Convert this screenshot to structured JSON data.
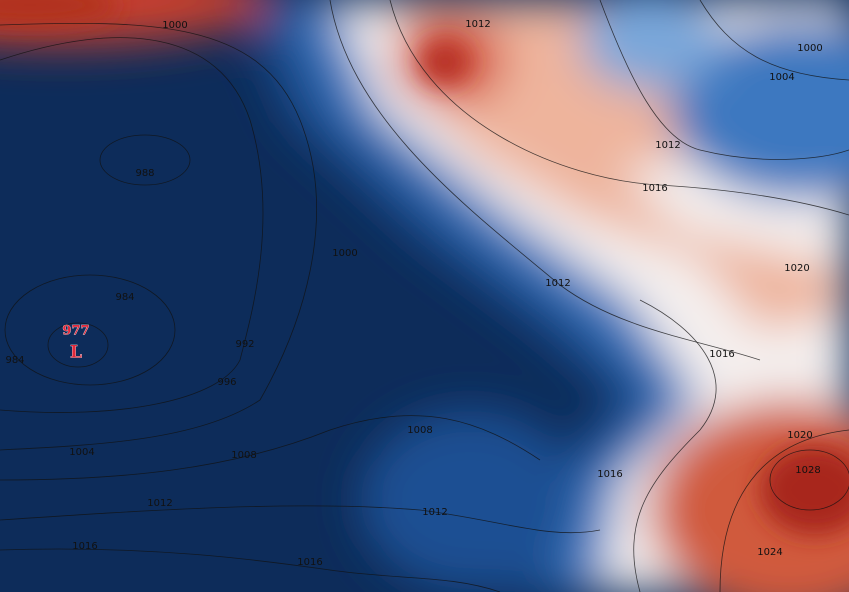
{
  "low": {
    "pressure": "977",
    "symbol": "L"
  },
  "isobar_labels": [
    "1000",
    "1012",
    "1000",
    "1004",
    "988",
    "1012",
    "1016",
    "1000",
    "1012",
    "1020",
    "984",
    "984",
    "992",
    "996",
    "1016",
    "1008",
    "1004",
    "1008",
    "1012",
    "1012",
    "1016",
    "1020",
    "1028",
    "1024",
    "1016",
    "1016"
  ]
}
